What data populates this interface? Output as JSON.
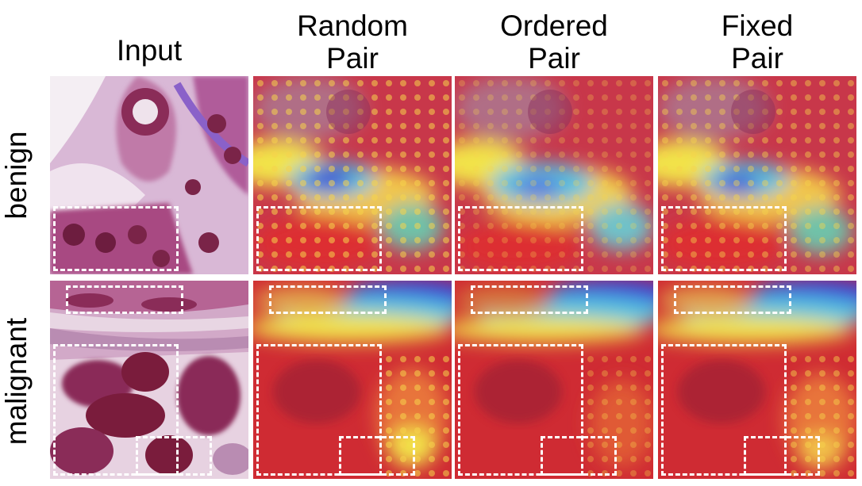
{
  "columns": [
    {
      "line1": "",
      "line2": "Input"
    },
    {
      "line1": "Random",
      "line2": "Pair"
    },
    {
      "line1": "Ordered",
      "line2": "Pair"
    },
    {
      "line1": "Fixed",
      "line2": "Pair"
    }
  ],
  "rows": [
    {
      "label": "benign"
    },
    {
      "label": "malignant"
    }
  ],
  "colors": {
    "tissue_pink": "#c98bb8",
    "nucleus": "#7a1c3c",
    "heat_red": "#d8262b",
    "heat_yellow": "#f2e34a",
    "heat_cyan": "#55c2e0",
    "heat_blue": "#3b3fd6"
  }
}
